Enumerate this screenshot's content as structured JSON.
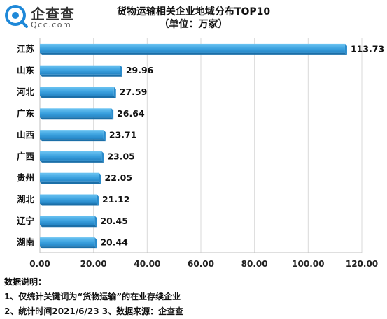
{
  "logo": {
    "name": "企查查",
    "domain": "Qcc.com"
  },
  "chart_data": {
    "type": "bar",
    "orientation": "horizontal",
    "title": "货物运输相关企业地域分布TOP10",
    "subtitle": "（单位：万家）",
    "categories": [
      "江苏",
      "山东",
      "河北",
      "广东",
      "山西",
      "广西",
      "贵州",
      "湖北",
      "辽宁",
      "湖南"
    ],
    "values": [
      113.73,
      29.96,
      27.59,
      26.64,
      23.71,
      23.05,
      22.05,
      21.12,
      20.45,
      20.44
    ],
    "value_labels": [
      "113.73",
      "29.96",
      "27.59",
      "26.64",
      "23.71",
      "23.05",
      "22.05",
      "21.12",
      "20.45",
      "20.44"
    ],
    "xlim": [
      0,
      120
    ],
    "xticks": [
      0,
      20,
      40,
      60,
      80,
      100,
      120
    ],
    "xtick_labels": [
      "0.00",
      "20.00",
      "40.00",
      "60.00",
      "80.00",
      "100.00",
      "120.00"
    ],
    "grid": true,
    "bar_color": "#3aa0de"
  },
  "notes": {
    "heading": "数据说明：",
    "line1": "1、仅统计关键词为“货物运输”的在业存续企业",
    "line2": "2、统计时间2021/6/23    3、数据来源：企查查"
  }
}
